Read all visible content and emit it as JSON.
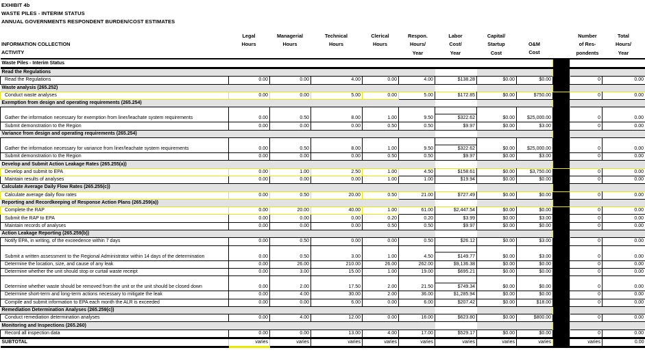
{
  "header": {
    "exhibit": "EXHIBIT 4b",
    "title": "WASTE PILES - INTERIM STATUS",
    "subtitle": "ANNUAL GOVERNMENTS RESPONDENT BURDEN/COST ESTIMATES"
  },
  "columns": {
    "activity": [
      "INFORMATION COLLECTION",
      "ACTIVITY"
    ],
    "legal": [
      "Legal",
      "Hours"
    ],
    "managerial": [
      "Managerial",
      "Hours"
    ],
    "technical": [
      "Technical",
      "Hours"
    ],
    "clerical": [
      "Clerical",
      "Hours"
    ],
    "respon": [
      "Respon.",
      "Hours/",
      "Year"
    ],
    "labor": [
      "Labor",
      "Cost/",
      "Year"
    ],
    "capital": [
      "Capital/",
      "Startup",
      "Cost"
    ],
    "om": [
      "O&M",
      "Cost"
    ],
    "respondents": [
      "Number",
      "of Res-",
      "pondents"
    ],
    "total": [
      "Total",
      "Hours/",
      "Year"
    ]
  },
  "table_title": "Waste Piles - Interim Status",
  "rows": [
    {
      "type": "section",
      "label": "Read the Regulations"
    },
    {
      "type": "data",
      "label": "Read the Regulations",
      "v": [
        "0.00",
        "0.00",
        "4.00",
        "0.00",
        "4.00",
        "$138.28",
        "$0.00",
        "$0.00",
        "0",
        "0.00"
      ]
    },
    {
      "type": "section",
      "label": "Waste analysis (265.252)"
    },
    {
      "type": "data",
      "yellow": true,
      "label": "Conduct waste analyses",
      "v": [
        "0.00",
        "0.00",
        "5.00",
        "0.00",
        "5.00",
        "$172.85",
        "$0.00",
        "$750.00",
        "0",
        "0.00"
      ]
    },
    {
      "type": "section",
      "label": "Exemption from design and operating requirements (265.254)"
    },
    {
      "type": "data",
      "double": true,
      "label": "Gather the information necessary for exemption from liner/leachate system requirements",
      "v": [
        "0.00",
        "0.50",
        "8.00",
        "1.00",
        "9.50",
        "$322.62",
        "$0.00",
        "$25,000.00",
        "0",
        "0.00"
      ]
    },
    {
      "type": "data",
      "label": "Submit demonstration to the Region",
      "v": [
        "0.00",
        "0.00",
        "0.00",
        "0.50",
        "0.50",
        "$9.97",
        "$0.00",
        "$3.00",
        "0",
        "0.00"
      ]
    },
    {
      "type": "section",
      "label": "Variance from design and operating requirements (265.254)"
    },
    {
      "type": "data",
      "double": true,
      "label": "Gather the information necessary for variance from liner/leachate system requirements",
      "v": [
        "0.00",
        "0.50",
        "8.00",
        "1.00",
        "9.50",
        "$322.62",
        "$0.00",
        "$25,000.00",
        "0",
        "0.00"
      ]
    },
    {
      "type": "data",
      "label": "Submit demonstration to the Region",
      "v": [
        "0.00",
        "0.00",
        "0.00",
        "0.50",
        "0.50",
        "$9.97",
        "$0.00",
        "$3.00",
        "0",
        "0.00"
      ]
    },
    {
      "type": "section",
      "label": "Develop and Submit Action Leakage Rates (265.255(a))"
    },
    {
      "type": "data",
      "yellow": true,
      "label": "Develop and submit to EPA",
      "v": [
        "0.00",
        "1.00",
        "2.50",
        "1.00",
        "4.50",
        "$158.61",
        "$0.00",
        "$3,750.00",
        "0",
        "0.00"
      ]
    },
    {
      "type": "data",
      "label": "Maintain results of analyses",
      "v": [
        "0.00",
        "0.00",
        "0.00",
        "1.00",
        "1.00",
        "$19.94",
        "$0.00",
        "$0.00",
        "0",
        "0.00"
      ]
    },
    {
      "type": "section",
      "label": "Calculate Average Daily Flow Rates (265.255(c))"
    },
    {
      "type": "data",
      "yellow": true,
      "label": "Calculate average daily flow rates",
      "v": [
        "0.00",
        "0.50",
        "20.00",
        "0.50",
        "21.00",
        "$727.49",
        "$0.00",
        "$0.00",
        "0",
        "0.00"
      ]
    },
    {
      "type": "section",
      "label": "Reporting and Recordkeeping of Response Action Plans (265.259(a))"
    },
    {
      "type": "data",
      "yellow": true,
      "label": "Complete the RAP",
      "v": [
        "0.00",
        "20.00",
        "40.00",
        "1.00",
        "61.00",
        "$2,447.54",
        "$0.00",
        "$0.00",
        "0",
        "0.00"
      ]
    },
    {
      "type": "data",
      "label": "Submit the RAP to EPA",
      "v": [
        "0.00",
        "0.00",
        "0.00",
        "0.20",
        "0.20",
        "$3.99",
        "$0.00",
        "$3.00",
        "0",
        "0.00"
      ]
    },
    {
      "type": "data",
      "label": "Maintain records of analyses",
      "v": [
        "0.00",
        "0.00",
        "0.00",
        "0.50",
        "0.50",
        "$9.97",
        "$0.00",
        "$0.00",
        "0",
        "0.00"
      ]
    },
    {
      "type": "section",
      "label": "Action Leakage Reporting (265.259(b))"
    },
    {
      "type": "data",
      "label": "Notify EPA, in writing, of the exceedence within 7 days",
      "v": [
        "0.00",
        "0.50",
        "0.00",
        "0.00",
        "0.50",
        "$26.12",
        "$0.00",
        "$3.00",
        "0",
        "0.00"
      ]
    },
    {
      "type": "data",
      "double": true,
      "label": "Submit a written assessment to the Regional Administrator within 14 days of the determination",
      "v": [
        "0.00",
        "0.50",
        "3.00",
        "1.00",
        "4.50",
        "$149.77",
        "$0.00",
        "$3.00",
        "0",
        "0.00"
      ]
    },
    {
      "type": "data",
      "label": "Determine the location, size, and cause of any leak",
      "v": [
        "0.00",
        "26.00",
        "210.00",
        "26.00",
        "262.00",
        "$9,136.38",
        "$0.00",
        "$0.00",
        "0",
        "0.00"
      ]
    },
    {
      "type": "data",
      "label": "Determine whether the unit should stop or curtail waste receipt",
      "v": [
        "0.00",
        "3.00",
        "15.00",
        "1.00",
        "19.00",
        "$695.21",
        "$0.00",
        "$0.00",
        "0",
        "0.00"
      ]
    },
    {
      "type": "data",
      "double": true,
      "label": "Determine whether waste should be removed from the unit or the unit should be closed down",
      "v": [
        "0.00",
        "2.00",
        "17.50",
        "2.00",
        "21.50",
        "$749.34",
        "$0.00",
        "$0.00",
        "0",
        "0.00"
      ]
    },
    {
      "type": "data",
      "label": "Determine short-term and long-term actions necessary to mitigate the leak",
      "v": [
        "0.00",
        "4.00",
        "30.00",
        "2.00",
        "36.00",
        "$1,285.94",
        "$0.00",
        "$0.00",
        "0",
        "0.00"
      ]
    },
    {
      "type": "data",
      "label": "Compile and submit information to EPA each month the ALR is exceeded",
      "v": [
        "0.00",
        "0.00",
        "6.00",
        "0.00",
        "6.00",
        "$207.42",
        "$0.00",
        "$18.00",
        "0",
        "0.00"
      ]
    },
    {
      "type": "section",
      "label": "Remediation Determination Analyses (265.259(c))"
    },
    {
      "type": "data",
      "label": "Conduct remediation determination analyses",
      "v": [
        "0.00",
        "4.00",
        "12.00",
        "0.00",
        "16.00",
        "$623.80",
        "$0.00",
        "$800.00",
        "0",
        "0.00"
      ]
    },
    {
      "type": "section",
      "label": "Monitoring and Inspections (265.260)"
    },
    {
      "type": "data",
      "label": "Record all inspection data",
      "v": [
        "0.00",
        "0.00",
        "13.00",
        "4.00",
        "17.00",
        "$529.17",
        "$0.00",
        "$0.00",
        "0",
        "0.00"
      ]
    }
  ],
  "subtotal": {
    "label": "SUBTOTAL",
    "v": [
      "varies",
      "varies",
      "varies",
      "varies",
      "varies",
      "varies",
      "varies",
      "varies",
      "varies",
      "0.00"
    ]
  }
}
